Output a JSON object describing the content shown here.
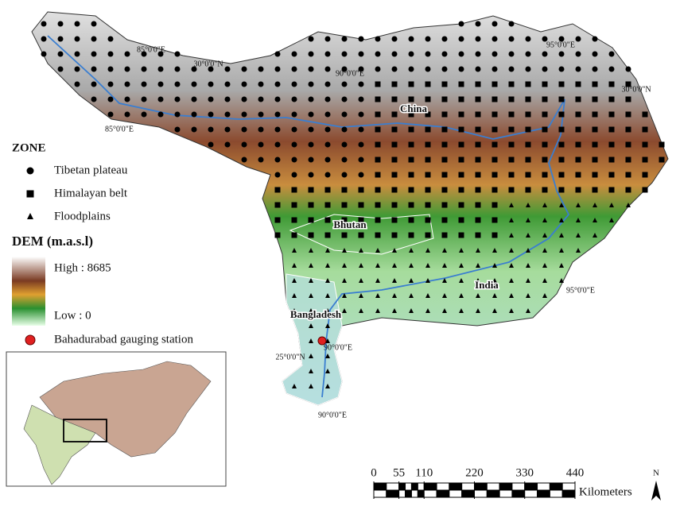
{
  "legend": {
    "zone_title": "ZONE",
    "zones": [
      "Tibetan plateau",
      "Himalayan belt",
      "Floodplains"
    ],
    "dem_title": "DEM (m.a.s.l)",
    "dem_high": "High : 8685",
    "dem_low": "Low : 0",
    "station": "Bahadurabad gauging station"
  },
  "regions": [
    "China",
    "Bhutan",
    "India",
    "Bangladesh"
  ],
  "coordinates": [
    "85°0'0\"E",
    "30°0'0\"N",
    "90°0'0\"E",
    "95°0'0\"E",
    "30°0'0\"N",
    "85°0'0\"E",
    "95°0'0\"E",
    "90°0'0\"E",
    "25°0'0\"N",
    "90°0'0\"E"
  ],
  "scale_bar": {
    "ticks": [
      0,
      55,
      110,
      220,
      330,
      440
    ],
    "unit": "Kilometers"
  },
  "north": "N"
}
